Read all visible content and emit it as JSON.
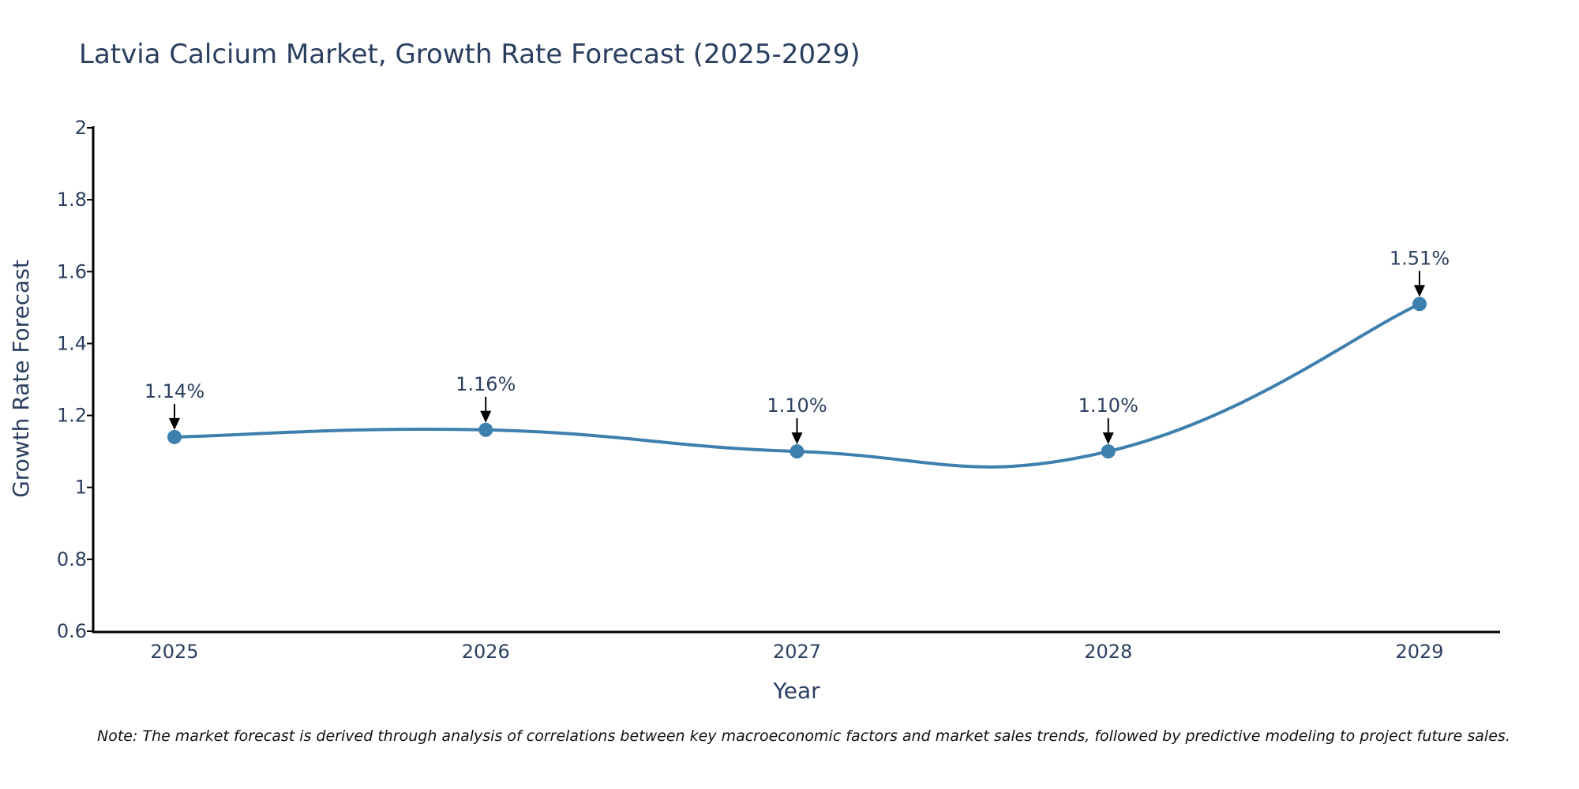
{
  "chart_data": {
    "type": "line",
    "title": "Latvia Calcium Market, Growth Rate Forecast (2025-2029)",
    "xlabel": "Year",
    "ylabel": "Growth Rate Forecast",
    "categories": [
      "2025",
      "2026",
      "2027",
      "2028",
      "2029"
    ],
    "values": [
      1.14,
      1.16,
      1.1,
      1.1,
      1.51
    ],
    "data_labels": [
      "1.14%",
      "1.16%",
      "1.10%",
      "1.10%",
      "1.51%"
    ],
    "ylim": [
      0.6,
      2
    ],
    "yticks": [
      0.6,
      0.8,
      1,
      1.2,
      1.4,
      1.6,
      1.8,
      2
    ],
    "ytick_labels": [
      "0.6",
      "0.8",
      "1",
      "1.2",
      "1.4",
      "1.6",
      "1.8",
      "2"
    ],
    "grid": false,
    "line_color": "#3d7fad",
    "note": "Note: The market forecast is derived through analysis of correlations between key macroeconomic factors and market sales trends, followed by predictive modeling to project future sales."
  }
}
